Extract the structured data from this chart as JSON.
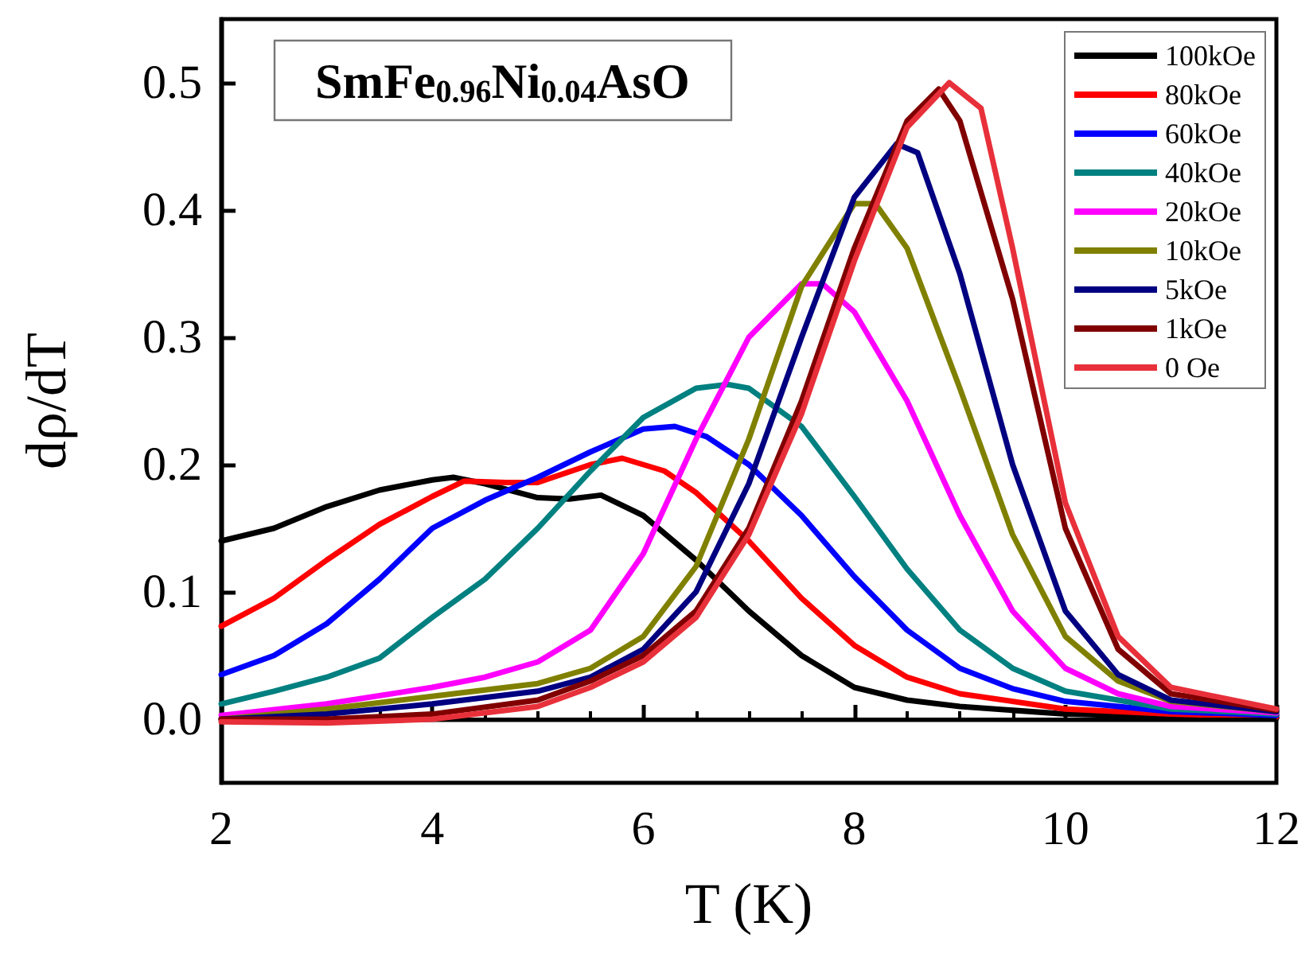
{
  "chart_data": {
    "type": "line",
    "title": "SmFe$_{0.96}$Ni$_{0.04}$AsO",
    "xlabel": "T (K)",
    "ylabel": "dρ/dT",
    "xlim": [
      2,
      12
    ],
    "xticks": [
      2,
      4,
      6,
      8,
      10,
      12
    ],
    "ylim": [
      -0.05,
      0.55
    ],
    "yticks": [
      {
        "value": 0,
        "label": "0.0"
      },
      0.1,
      0.2,
      0.3,
      0.4,
      0.5
    ],
    "grid": false,
    "legend": "top right",
    "marker": "none",
    "line_style": "solid",
    "ref_lines": [
      {
        "axis": "y",
        "value": 0,
        "color": "#000000"
      }
    ],
    "series": [
      {
        "name": "100kOe",
        "color": "#000000",
        "x": [
          2,
          2.5,
          3,
          3.5,
          4,
          4.2,
          4.5,
          5,
          5.3,
          5.6,
          6,
          6.5,
          7,
          7.5,
          8,
          8.5,
          9,
          10,
          11,
          12
        ],
        "values": [
          0.14,
          0.15,
          0.167,
          0.18,
          0.188,
          0.19,
          0.185,
          0.174,
          0.173,
          0.176,
          0.16,
          0.125,
          0.085,
          0.05,
          0.025,
          0.015,
          0.01,
          0.004,
          0.002,
          0.001
        ]
      },
      {
        "name": "80kOe",
        "color": "#ff0000",
        "x": [
          2,
          2.5,
          3,
          3.5,
          4,
          4.3,
          4.7,
          5,
          5.5,
          5.8,
          6.2,
          6.5,
          7,
          7.5,
          8,
          8.5,
          9,
          10,
          11,
          12
        ],
        "values": [
          0.073,
          0.095,
          0.125,
          0.153,
          0.175,
          0.187,
          0.186,
          0.186,
          0.2,
          0.205,
          0.195,
          0.178,
          0.14,
          0.095,
          0.058,
          0.033,
          0.02,
          0.008,
          0.004,
          0.002
        ]
      },
      {
        "name": "60kOe",
        "color": "#0000ff",
        "x": [
          2,
          2.5,
          3,
          3.5,
          4,
          4.5,
          5,
          5.5,
          6,
          6.3,
          6.6,
          7,
          7.5,
          8,
          8.5,
          9,
          9.5,
          10,
          11,
          12
        ],
        "values": [
          0.035,
          0.05,
          0.075,
          0.11,
          0.15,
          0.172,
          0.19,
          0.21,
          0.228,
          0.23,
          0.222,
          0.2,
          0.16,
          0.112,
          0.07,
          0.04,
          0.024,
          0.014,
          0.006,
          0.003
        ]
      },
      {
        "name": "40kOe",
        "color": "#008080",
        "x": [
          2,
          2.5,
          3,
          3.5,
          4,
          4.5,
          5,
          5.5,
          6,
          6.5,
          6.8,
          7,
          7.5,
          8,
          8.5,
          9,
          9.5,
          10,
          11,
          12
        ],
        "values": [
          0.012,
          0.022,
          0.033,
          0.048,
          0.08,
          0.11,
          0.15,
          0.195,
          0.237,
          0.26,
          0.263,
          0.26,
          0.23,
          0.175,
          0.118,
          0.07,
          0.04,
          0.022,
          0.008,
          0.004
        ]
      },
      {
        "name": "20kOe",
        "color": "#ff00ff",
        "x": [
          2,
          3,
          4,
          4.5,
          5,
          5.5,
          6,
          6.5,
          7,
          7.5,
          7.7,
          8,
          8.5,
          9,
          9.5,
          10,
          10.5,
          11,
          12
        ],
        "values": [
          0.003,
          0.012,
          0.025,
          0.033,
          0.045,
          0.07,
          0.13,
          0.22,
          0.3,
          0.342,
          0.342,
          0.32,
          0.25,
          0.16,
          0.085,
          0.04,
          0.02,
          0.01,
          0.005
        ]
      },
      {
        "name": "10kOe",
        "color": "#808000",
        "x": [
          2,
          3,
          4,
          5,
          5.5,
          6,
          6.5,
          7,
          7.5,
          8,
          8.2,
          8.5,
          9,
          9.5,
          10,
          10.5,
          11,
          12
        ],
        "values": [
          0.0,
          0.008,
          0.018,
          0.028,
          0.04,
          0.065,
          0.12,
          0.22,
          0.34,
          0.405,
          0.405,
          0.37,
          0.26,
          0.145,
          0.065,
          0.03,
          0.014,
          0.006
        ]
      },
      {
        "name": "5kOe",
        "color": "#000080",
        "x": [
          2,
          3,
          4,
          5,
          5.5,
          6,
          6.5,
          7,
          7.5,
          8,
          8.4,
          8.6,
          9,
          9.5,
          10,
          10.5,
          11,
          12
        ],
        "values": [
          0.0,
          0.004,
          0.012,
          0.022,
          0.033,
          0.055,
          0.1,
          0.185,
          0.3,
          0.41,
          0.452,
          0.445,
          0.35,
          0.2,
          0.085,
          0.035,
          0.015,
          0.006
        ]
      },
      {
        "name": "1kOe",
        "color": "#800000",
        "x": [
          2,
          3,
          4,
          5,
          5.5,
          6,
          6.5,
          7,
          7.5,
          8,
          8.5,
          8.8,
          9,
          9.5,
          10,
          10.5,
          11,
          12
        ],
        "values": [
          0.0,
          0.0,
          0.004,
          0.015,
          0.03,
          0.05,
          0.085,
          0.15,
          0.25,
          0.37,
          0.47,
          0.495,
          0.47,
          0.33,
          0.15,
          0.055,
          0.02,
          0.007
        ]
      },
      {
        "name": "0 Oe",
        "color": "#e8303a",
        "x": [
          2,
          3,
          4,
          5,
          5.5,
          6,
          6.5,
          7,
          7.5,
          8,
          8.5,
          8.9,
          9.2,
          9.5,
          10,
          10.5,
          11,
          12
        ],
        "values": [
          -0.002,
          -0.003,
          0.0,
          0.01,
          0.025,
          0.045,
          0.08,
          0.145,
          0.24,
          0.36,
          0.465,
          0.5,
          0.48,
          0.37,
          0.17,
          0.065,
          0.025,
          0.008
        ]
      }
    ]
  }
}
